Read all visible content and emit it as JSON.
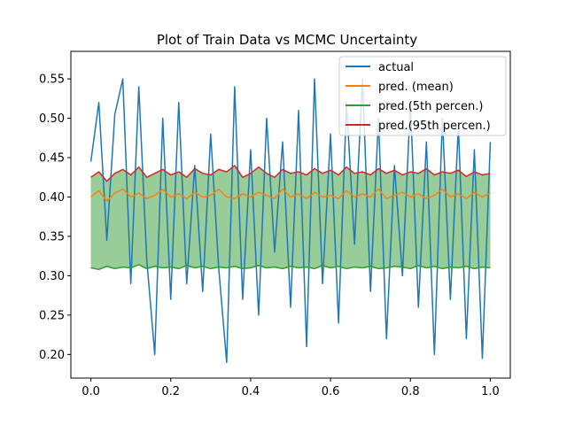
{
  "chart_data": {
    "type": "line",
    "title": "Plot of Train Data vs MCMC Uncertainty",
    "xlabel": "",
    "ylabel": "",
    "xlim": [
      -0.05,
      1.05
    ],
    "ylim": [
      0.17,
      0.585
    ],
    "xticks": [
      "0.0",
      "0.2",
      "0.4",
      "0.6",
      "0.8",
      "1.0"
    ],
    "xtick_values": [
      0.0,
      0.2,
      0.4,
      0.6,
      0.8,
      1.0
    ],
    "yticks": [
      "0.20",
      "0.25",
      "0.30",
      "0.35",
      "0.40",
      "0.45",
      "0.50",
      "0.55"
    ],
    "ytick_values": [
      0.2,
      0.25,
      0.3,
      0.35,
      0.4,
      0.45,
      0.5,
      0.55
    ],
    "grid": false,
    "legend": "top-right",
    "fill_between": {
      "lower": "pred.(5th percen.)",
      "upper": "pred.(95th percen.)",
      "color": "#98cc98"
    },
    "x": [
      0.0,
      0.02,
      0.04,
      0.06,
      0.08,
      0.1,
      0.12,
      0.14,
      0.16,
      0.18,
      0.2,
      0.22,
      0.24,
      0.26,
      0.28,
      0.3,
      0.32,
      0.34,
      0.36,
      0.38,
      0.4,
      0.42,
      0.44,
      0.46,
      0.48,
      0.5,
      0.52,
      0.54,
      0.56,
      0.58,
      0.6,
      0.62,
      0.64,
      0.66,
      0.68,
      0.7,
      0.72,
      0.74,
      0.76,
      0.78,
      0.8,
      0.82,
      0.84,
      0.86,
      0.88,
      0.9,
      0.92,
      0.94,
      0.96,
      0.98,
      1.0
    ],
    "series": [
      {
        "name": "actual",
        "color": "#1f77b4",
        "values": [
          0.445,
          0.52,
          0.345,
          0.505,
          0.55,
          0.29,
          0.54,
          0.32,
          0.2,
          0.5,
          0.27,
          0.52,
          0.29,
          0.44,
          0.28,
          0.48,
          0.31,
          0.19,
          0.54,
          0.27,
          0.46,
          0.25,
          0.5,
          0.33,
          0.47,
          0.26,
          0.51,
          0.21,
          0.55,
          0.29,
          0.48,
          0.24,
          0.52,
          0.34,
          0.55,
          0.28,
          0.5,
          0.22,
          0.44,
          0.3,
          0.52,
          0.26,
          0.47,
          0.2,
          0.5,
          0.27,
          0.49,
          0.22,
          0.46,
          0.195,
          0.47
        ]
      },
      {
        "name": "pred. (mean)",
        "color": "#ff7f0e",
        "values": [
          0.4,
          0.408,
          0.395,
          0.405,
          0.41,
          0.4,
          0.405,
          0.398,
          0.402,
          0.41,
          0.4,
          0.404,
          0.398,
          0.406,
          0.4,
          0.402,
          0.41,
          0.4,
          0.398,
          0.404,
          0.4,
          0.406,
          0.402,
          0.398,
          0.41,
          0.4,
          0.404,
          0.398,
          0.406,
          0.4,
          0.402,
          0.398,
          0.408,
          0.4,
          0.404,
          0.4,
          0.41,
          0.398,
          0.402,
          0.406,
          0.4,
          0.404,
          0.398,
          0.402,
          0.41,
          0.4,
          0.404,
          0.398,
          0.406,
          0.4,
          0.405
        ]
      },
      {
        "name": "pred.(5th percen.)",
        "color": "#2ca02c",
        "values": [
          0.31,
          0.308,
          0.312,
          0.309,
          0.311,
          0.31,
          0.314,
          0.309,
          0.312,
          0.31,
          0.311,
          0.309,
          0.313,
          0.31,
          0.312,
          0.309,
          0.311,
          0.31,
          0.312,
          0.309,
          0.31,
          0.313,
          0.31,
          0.311,
          0.309,
          0.312,
          0.31,
          0.311,
          0.309,
          0.313,
          0.31,
          0.312,
          0.309,
          0.311,
          0.31,
          0.312,
          0.309,
          0.31,
          0.312,
          0.311,
          0.309,
          0.313,
          0.31,
          0.312,
          0.309,
          0.311,
          0.31,
          0.312,
          0.309,
          0.311,
          0.31
        ]
      },
      {
        "name": "pred.(95th percen.)",
        "color": "#d62728",
        "values": [
          0.425,
          0.432,
          0.42,
          0.43,
          0.435,
          0.428,
          0.438,
          0.425,
          0.43,
          0.435,
          0.428,
          0.432,
          0.425,
          0.436,
          0.43,
          0.428,
          0.435,
          0.432,
          0.44,
          0.425,
          0.43,
          0.438,
          0.43,
          0.425,
          0.435,
          0.43,
          0.432,
          0.428,
          0.436,
          0.43,
          0.434,
          0.428,
          0.438,
          0.43,
          0.432,
          0.428,
          0.436,
          0.43,
          0.434,
          0.428,
          0.432,
          0.43,
          0.436,
          0.428,
          0.432,
          0.43,
          0.434,
          0.426,
          0.432,
          0.428,
          0.43
        ]
      }
    ]
  }
}
